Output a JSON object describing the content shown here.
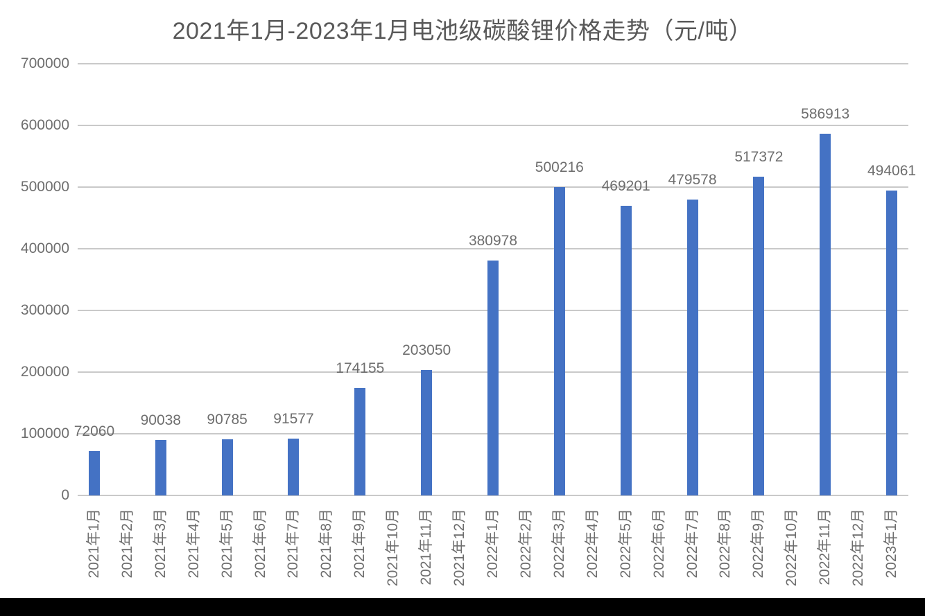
{
  "page": {
    "background_color": "#ffffff",
    "bottom_strip_color": "#000000"
  },
  "chart_data": {
    "type": "bar",
    "title": "2021年1月-2023年1月电池级碳酸锂价格走势（元/吨）",
    "categories": [
      "2021年1月",
      "2021年2月",
      "2021年3月",
      "2021年4月",
      "2021年5月",
      "2021年6月",
      "2021年7月",
      "2021年8月",
      "2021年9月",
      "2021年10月",
      "2021年11月",
      "2021年12月",
      "2022年1月",
      "2022年2月",
      "2022年3月",
      "2022年4月",
      "2022年5月",
      "2022年6月",
      "2022年7月",
      "2022年8月",
      "2022年9月",
      "2022年10月",
      "2022年11月",
      "2022年12月",
      "2023年1月"
    ],
    "values": [
      72060,
      null,
      90038,
      null,
      90785,
      null,
      91577,
      null,
      174155,
      null,
      203050,
      null,
      380978,
      null,
      500216,
      null,
      469201,
      null,
      479578,
      null,
      517372,
      null,
      586913,
      null,
      494061
    ],
    "data_labels": [
      "72060",
      "",
      "90038",
      "",
      "90785",
      "",
      "91577",
      "",
      "174155",
      "",
      "203050",
      "",
      "380978",
      "",
      "500216",
      "",
      "469201",
      "",
      "479578",
      "",
      "517372",
      "",
      "586913",
      "",
      "494061"
    ],
    "ylim": [
      0,
      700000
    ],
    "ytick_interval": 100000,
    "ytick_labels": [
      "0",
      "100000",
      "200000",
      "300000",
      "400000",
      "500000",
      "600000",
      "700000"
    ],
    "xlabel": "",
    "ylabel": "",
    "grid": true,
    "legend_position": "none",
    "bar_color": "#4472C4",
    "gridline_color": "#c9c9c9",
    "axis_label_color": "#6e6e6e",
    "data_label_color": "#6e6e6e",
    "title_color": "#595959"
  }
}
